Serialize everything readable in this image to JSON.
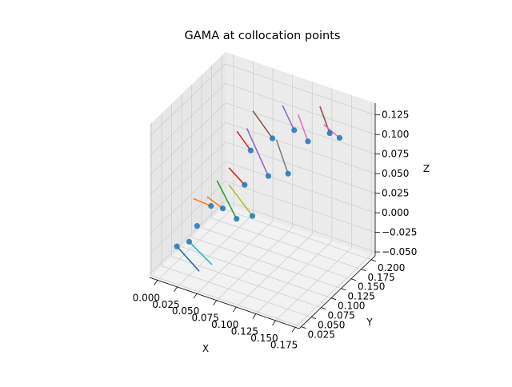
{
  "chart_data": {
    "type": "scatter3d",
    "title": "GAMA at collocation points",
    "xlabel": "X",
    "ylabel": "Y",
    "zlabel": "Z",
    "grid": true,
    "x_ticks": [
      "0.000",
      "0.025",
      "0.050",
      "0.075",
      "0.100",
      "0.125",
      "0.150",
      "0.175"
    ],
    "y_ticks": [
      "0.025",
      "0.050",
      "0.075",
      "0.100",
      "0.125",
      "0.150",
      "0.175",
      "0.200"
    ],
    "z_ticks": [
      "−0.050",
      "−0.025",
      "0.000",
      "0.025",
      "0.050",
      "0.075",
      "0.100",
      "0.125"
    ],
    "xlim": [
      -0.01,
      0.18
    ],
    "ylim": [
      0.02,
      0.21
    ],
    "zlim": [
      -0.055,
      0.14
    ],
    "points": [
      {
        "x": 0.012,
        "y": 0.045,
        "z": -0.02
      },
      {
        "x": 0.025,
        "y": 0.05,
        "z": -0.012
      },
      {
        "x": 0.03,
        "y": 0.06,
        "z": 0.005
      },
      {
        "x": 0.035,
        "y": 0.085,
        "z": 0.02
      },
      {
        "x": 0.05,
        "y": 0.085,
        "z": 0.022
      },
      {
        "x": 0.07,
        "y": 0.08,
        "z": 0.018
      },
      {
        "x": 0.085,
        "y": 0.09,
        "z": 0.022
      },
      {
        "x": 0.065,
        "y": 0.11,
        "z": 0.045
      },
      {
        "x": 0.06,
        "y": 0.135,
        "z": 0.075
      },
      {
        "x": 0.09,
        "y": 0.12,
        "z": 0.06
      },
      {
        "x": 0.08,
        "y": 0.15,
        "z": 0.09
      },
      {
        "x": 0.11,
        "y": 0.13,
        "z": 0.065
      },
      {
        "x": 0.1,
        "y": 0.165,
        "z": 0.1
      },
      {
        "x": 0.12,
        "y": 0.16,
        "z": 0.095
      },
      {
        "x": 0.14,
        "y": 0.175,
        "z": 0.105
      },
      {
        "x": 0.15,
        "y": 0.18,
        "z": 0.1
      }
    ],
    "vectors": [
      {
        "color": "#1f77b4",
        "from": {
          "x": 0.012,
          "y": 0.045,
          "z": -0.02
        },
        "to": {
          "x": 0.042,
          "y": 0.042,
          "z": -0.04
        }
      },
      {
        "color": "#17becf",
        "from": {
          "x": 0.025,
          "y": 0.05,
          "z": -0.012
        },
        "to": {
          "x": 0.055,
          "y": 0.048,
          "z": -0.03
        }
      },
      {
        "color": "#ff7f0e",
        "from": {
          "x": 0.015,
          "y": 0.08,
          "z": 0.025
        },
        "to": {
          "x": 0.035,
          "y": 0.085,
          "z": 0.02
        }
      },
      {
        "color": "#ff7f0e",
        "from": {
          "x": 0.03,
          "y": 0.085,
          "z": 0.03
        },
        "to": {
          "x": 0.05,
          "y": 0.085,
          "z": 0.022
        }
      },
      {
        "color": "#2ca02c",
        "from": {
          "x": 0.035,
          "y": 0.1,
          "z": 0.045
        },
        "to": {
          "x": 0.07,
          "y": 0.08,
          "z": 0.018
        }
      },
      {
        "color": "#bcbd22",
        "from": {
          "x": 0.05,
          "y": 0.1,
          "z": 0.045
        },
        "to": {
          "x": 0.085,
          "y": 0.09,
          "z": 0.022
        }
      },
      {
        "color": "#d62728",
        "from": {
          "x": 0.045,
          "y": 0.11,
          "z": 0.06
        },
        "to": {
          "x": 0.065,
          "y": 0.11,
          "z": 0.045
        }
      },
      {
        "color": "#d62728",
        "from": {
          "x": 0.04,
          "y": 0.14,
          "z": 0.09
        },
        "to": {
          "x": 0.06,
          "y": 0.135,
          "z": 0.075
        }
      },
      {
        "color": "#9467bd",
        "from": {
          "x": 0.05,
          "y": 0.145,
          "z": 0.095
        },
        "to": {
          "x": 0.09,
          "y": 0.12,
          "z": 0.06
        }
      },
      {
        "color": "#8c564b",
        "from": {
          "x": 0.05,
          "y": 0.16,
          "z": 0.11
        },
        "to": {
          "x": 0.08,
          "y": 0.15,
          "z": 0.09
        }
      },
      {
        "color": "#7f7f7f",
        "from": {
          "x": 0.085,
          "y": 0.15,
          "z": 0.09
        },
        "to": {
          "x": 0.11,
          "y": 0.13,
          "z": 0.065
        }
      },
      {
        "color": "#9467bd",
        "from": {
          "x": 0.08,
          "y": 0.175,
          "z": 0.12
        },
        "to": {
          "x": 0.1,
          "y": 0.165,
          "z": 0.1
        }
      },
      {
        "color": "#e377c2",
        "from": {
          "x": 0.1,
          "y": 0.175,
          "z": 0.115
        },
        "to": {
          "x": 0.12,
          "y": 0.16,
          "z": 0.095
        }
      },
      {
        "color": "#8c564b",
        "from": {
          "x": 0.12,
          "y": 0.19,
          "z": 0.125
        },
        "to": {
          "x": 0.14,
          "y": 0.175,
          "z": 0.105
        }
      },
      {
        "color": "#e377c2",
        "from": {
          "x": 0.13,
          "y": 0.18,
          "z": 0.11
        },
        "to": {
          "x": 0.15,
          "y": 0.18,
          "z": 0.1
        }
      }
    ],
    "marker_color": "#1f77b4"
  }
}
